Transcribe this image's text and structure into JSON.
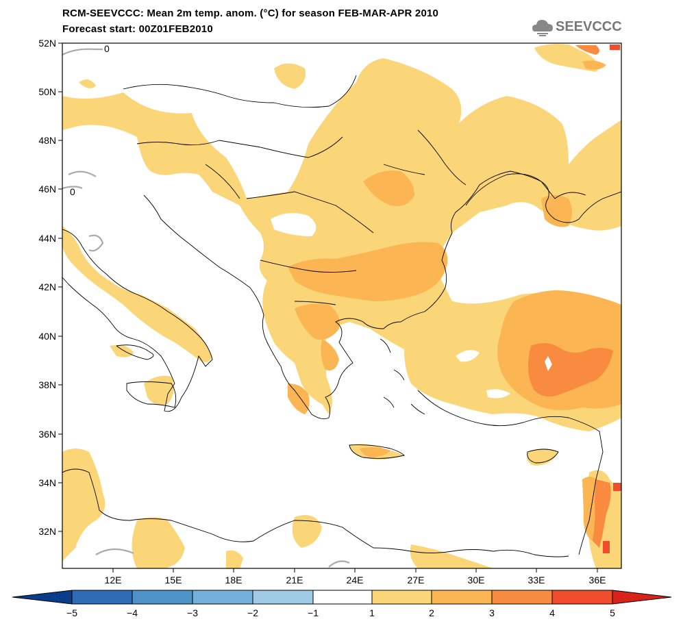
{
  "title": {
    "line1": "RCM-SEEVCCC: Mean 2m temp. anom. (°C) for season FEB-MAR-APR 2010",
    "line2": "Forecast start: 00Z01FEB2010"
  },
  "logo": {
    "text": "SEEVCCC",
    "icon": "cloud-logo-icon",
    "color": "#777777"
  },
  "map": {
    "lat_labels": [
      "52N",
      "50N",
      "48N",
      "46N",
      "44N",
      "42N",
      "40N",
      "38N",
      "36N",
      "34N",
      "32N"
    ],
    "lon_labels": [
      "12E",
      "15E",
      "18E",
      "21E",
      "24E",
      "27E",
      "30E",
      "33E",
      "36E"
    ],
    "contour_label": "0",
    "contour_color": "#aaaaaa",
    "coast_color": "#000000"
  },
  "colorbar": {
    "ticks": [
      "−5",
      "−4",
      "−3",
      "−2",
      "−1",
      "1",
      "2",
      "3",
      "4",
      "5"
    ],
    "colors": [
      "#0b3c8c",
      "#2e6db5",
      "#4d92c9",
      "#73b1dc",
      "#9fcbe6",
      "#ffffff",
      "#fbd679",
      "#fbb553",
      "#f88b3f",
      "#f04d2c",
      "#d92219"
    ]
  }
}
